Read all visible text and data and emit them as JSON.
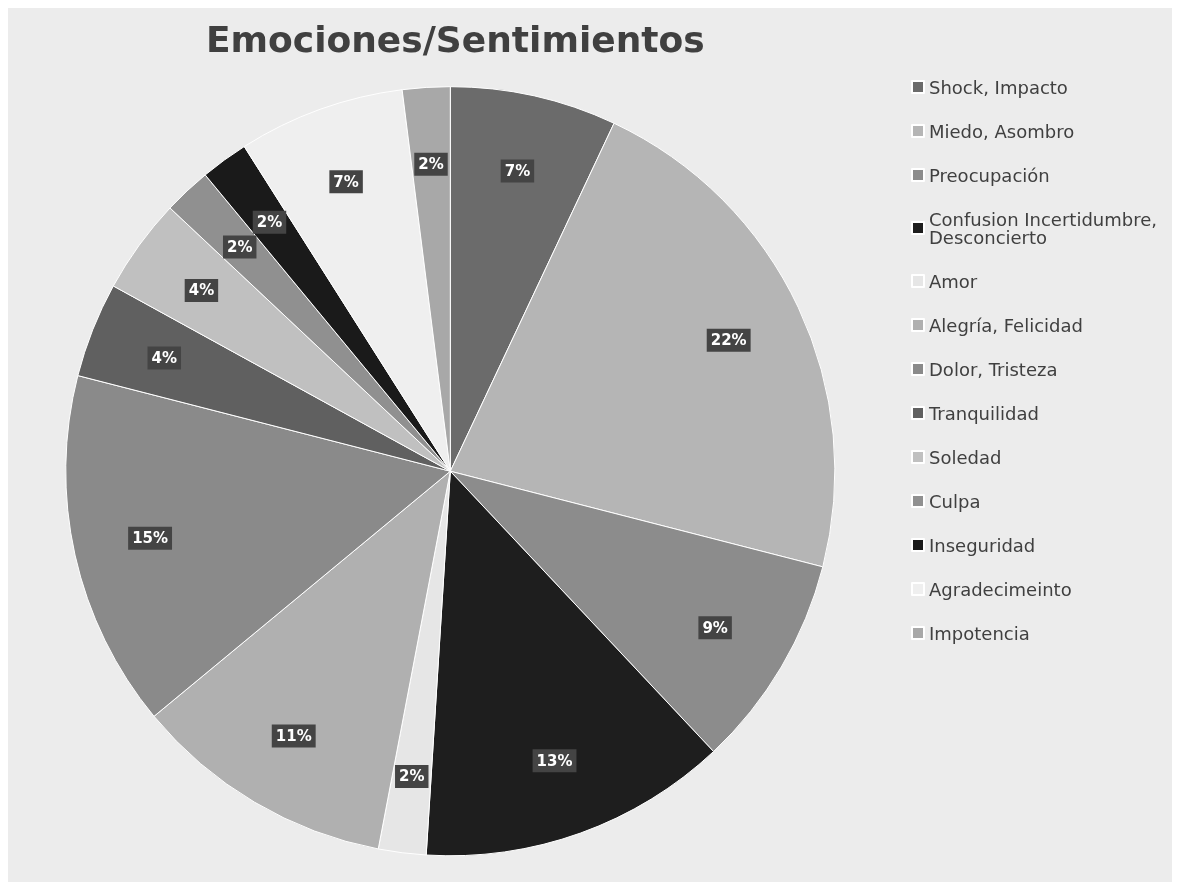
{
  "chart_data": {
    "type": "pie",
    "title": "Emociones/Sentimientos",
    "categories": [
      "Shock, Impacto",
      "Miedo, Asombro",
      "Preocupación",
      "Confusion Incertidumbre, Desconcierto",
      "Amor",
      "Alegría, Felicidad",
      "Dolor, Tristeza",
      "Tranquilidad",
      "Soledad",
      "Culpa",
      "Inseguridad",
      "Agradecimeinto",
      "Impotencia"
    ],
    "values": [
      7,
      22,
      9,
      13,
      2,
      11,
      15,
      4,
      4,
      2,
      2,
      7,
      2
    ],
    "colors": [
      "#6b6b6b",
      "#b5b5b5",
      "#8c8c8c",
      "#1e1e1e",
      "#e6e6e6",
      "#b0b0b0",
      "#8a8a8a",
      "#606060",
      "#c0c0c0",
      "#909090",
      "#1a1a1a",
      "#efefef",
      "#a8a8a8"
    ],
    "value_labels": [
      "7%",
      "22%",
      "9%",
      "13%",
      "2%",
      "11%",
      "15%",
      "4%",
      "4%",
      "2%",
      "2%",
      "7%",
      "2%"
    ],
    "legend": "right"
  }
}
